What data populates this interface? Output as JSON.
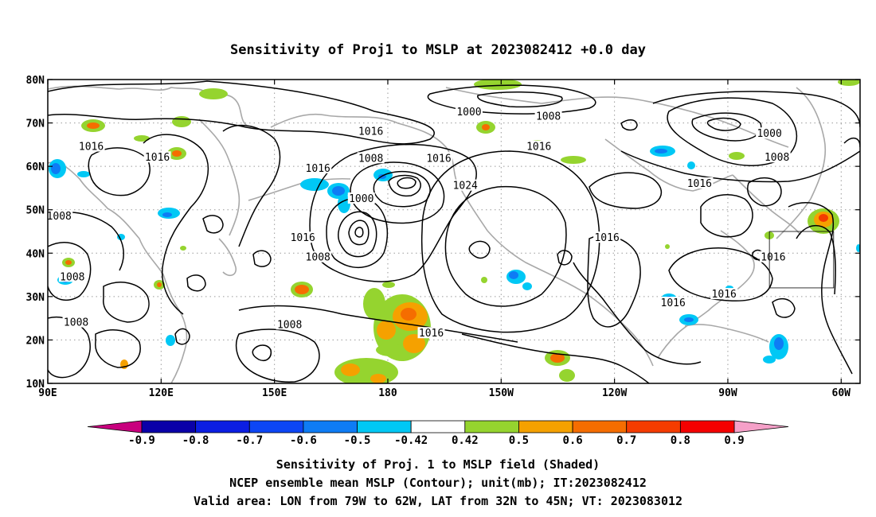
{
  "title": "Sensitivity of Proj1 to MSLP at 2023082412 +0.0 day",
  "map": {
    "lon_labels": [
      "90E",
      "120E",
      "150E",
      "180",
      "150W",
      "120W",
      "90W",
      "60W"
    ],
    "lat_labels": [
      "80N",
      "70N",
      "60N",
      "50N",
      "40N",
      "30N",
      "20N",
      "10N"
    ],
    "lon_range": [
      90,
      305
    ],
    "lat_range": [
      10,
      80
    ],
    "gridlines": "dotted",
    "valid_area_box": {
      "lon": [
        281,
        298
      ],
      "lat": [
        32,
        45
      ]
    }
  },
  "contours": {
    "labels": [
      {
        "text": "1000",
        "lon": 201.5,
        "lat": 72.5
      },
      {
        "text": "1008",
        "lon": 222.5,
        "lat": 71.5
      },
      {
        "text": "1016",
        "lon": 175.5,
        "lat": 68
      },
      {
        "text": "1000",
        "lon": 281,
        "lat": 67.5
      },
      {
        "text": "1016",
        "lon": 101.5,
        "lat": 64.5
      },
      {
        "text": "1016",
        "lon": 119,
        "lat": 62
      },
      {
        "text": "1008",
        "lon": 175.5,
        "lat": 61.8
      },
      {
        "text": "1016",
        "lon": 193.5,
        "lat": 61.8
      },
      {
        "text": "1016",
        "lon": 220,
        "lat": 64.5
      },
      {
        "text": "1008",
        "lon": 283,
        "lat": 62
      },
      {
        "text": "1016",
        "lon": 161.5,
        "lat": 59.5
      },
      {
        "text": "1000",
        "lon": 173,
        "lat": 52.5
      },
      {
        "text": "1024",
        "lon": 200.5,
        "lat": 55.5
      },
      {
        "text": "1016",
        "lon": 262.5,
        "lat": 56
      },
      {
        "text": "1008",
        "lon": 93,
        "lat": 48.5
      },
      {
        "text": "1016",
        "lon": 157.5,
        "lat": 43.5
      },
      {
        "text": "1016",
        "lon": 238,
        "lat": 43.5
      },
      {
        "text": "1008",
        "lon": 161.5,
        "lat": 39
      },
      {
        "text": "1016",
        "lon": 282,
        "lat": 39
      },
      {
        "text": "1008",
        "lon": 96.5,
        "lat": 34.5
      },
      {
        "text": "1016",
        "lon": 255.5,
        "lat": 28.5
      },
      {
        "text": "1016",
        "lon": 269,
        "lat": 30.5
      },
      {
        "text": "1008",
        "lon": 97.5,
        "lat": 24
      },
      {
        "text": "1008",
        "lon": 154,
        "lat": 23.5
      },
      {
        "text": "1016",
        "lon": 191.5,
        "lat": 21.5
      }
    ]
  },
  "colorbar": {
    "ticks": [
      "-0.9",
      "-0.8",
      "-0.7",
      "-0.6",
      "-0.5",
      "-0.42",
      "0.42",
      "0.5",
      "0.6",
      "0.7",
      "0.8",
      "0.9"
    ],
    "colors": [
      "#0a00a8",
      "#0b1ee3",
      "#0d46f5",
      "#0e7cf5",
      "#00c8f5",
      "#ffffff",
      "#95d42f",
      "#f5a100",
      "#f56d00",
      "#f53c00",
      "#f50000"
    ],
    "low_end": "#c8007e",
    "high_end": "#f5a0c8"
  },
  "caption": {
    "line1": "Sensitivity of Proj. 1 to MSLP field (Shaded)",
    "line2": "NCEP ensemble mean MSLP (Contour); unit(mb); IT:2023082412",
    "line3": "Valid area: LON from 79W to 62W, LAT from 32N to 45N; VT: 2023083012"
  }
}
